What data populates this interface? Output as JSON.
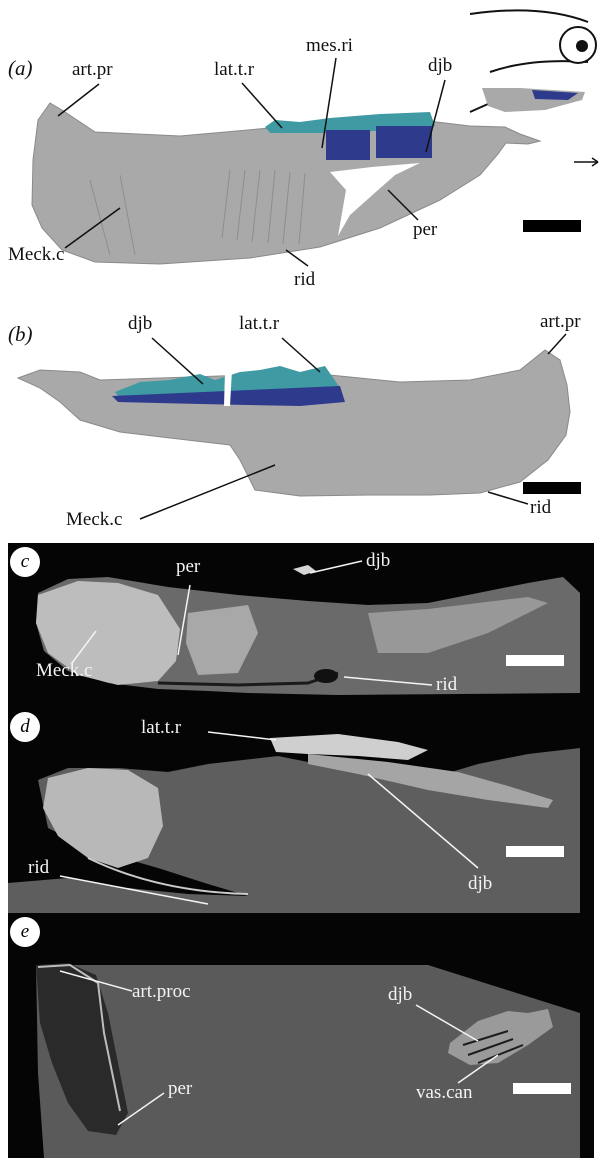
{
  "colors": {
    "bone": "#a7a7a7",
    "teeth_teal": "#3f9aa3",
    "dentary_blue": "#2e3a8c",
    "scale_black": "#000000",
    "scale_white": "#ffffff"
  },
  "panels": {
    "a": {
      "tag": "(a)",
      "labels": {
        "art_pr": "art.pr",
        "lat_t_r": "lat.t.r",
        "mes_ri": "mes.ri",
        "djb": "djb",
        "meck_c": "Meck.c",
        "rid": "rid",
        "per": "per"
      }
    },
    "b": {
      "tag": "(b)",
      "labels": {
        "djb": "djb",
        "lat_t_r": "lat.t.r",
        "art_pr": "art.pr",
        "meck_c": "Meck.c",
        "rid": "rid"
      }
    },
    "c": {
      "tag": "c",
      "labels": {
        "per": "per",
        "djb": "djb",
        "meck_c": "Meck.c",
        "rid": "rid"
      }
    },
    "d": {
      "tag": "d",
      "labels": {
        "lat_t_r": "lat.t.r",
        "rid": "rid",
        "djb": "djb"
      }
    },
    "e": {
      "tag": "e",
      "labels": {
        "art_proc": "art.proc",
        "djb": "djb",
        "per": "per",
        "vas_can": "vas.can"
      }
    }
  }
}
